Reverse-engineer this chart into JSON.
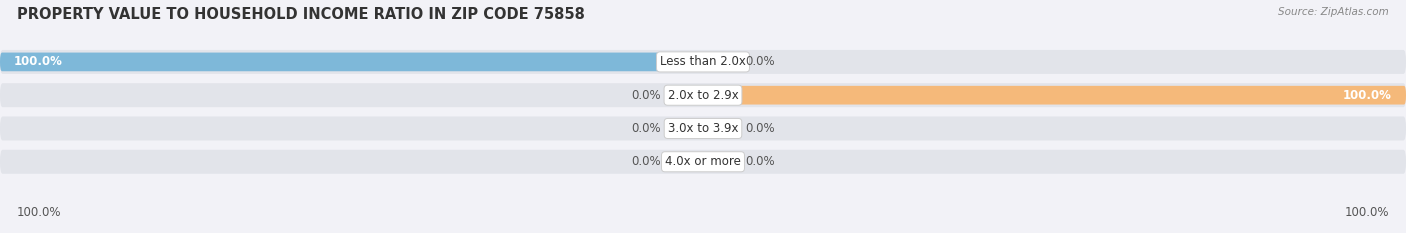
{
  "title": "PROPERTY VALUE TO HOUSEHOLD INCOME RATIO IN ZIP CODE 75858",
  "source": "Source: ZipAtlas.com",
  "categories": [
    "Less than 2.0x",
    "2.0x to 2.9x",
    "3.0x to 3.9x",
    "4.0x or more"
  ],
  "without_mortgage": [
    100.0,
    0.0,
    0.0,
    0.0
  ],
  "with_mortgage": [
    0.0,
    100.0,
    0.0,
    0.0
  ],
  "color_without": "#7eb8d9",
  "color_with": "#f5b97a",
  "background_bar_color": "#e2e4ea",
  "title_fontsize": 10.5,
  "label_fontsize": 8.5,
  "cat_label_fontsize": 8.5,
  "figsize": [
    14.06,
    2.33
  ],
  "dpi": 100,
  "fig_bg": "#f2f2f7"
}
